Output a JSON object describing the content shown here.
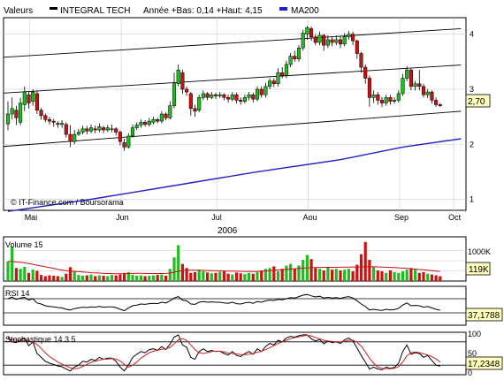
{
  "header": {
    "valeurs_label": "Valeurs",
    "stock_name": "INTEGRAL TECH",
    "stats_text": "Année +Bas: 0,14 +Haut: 4,15",
    "ma_label": "MA200",
    "colors": {
      "stock": "#000000",
      "ma": "#2222cc"
    }
  },
  "footer": {
    "credit": "© IT-Finance.com / Boursorama",
    "year": "2006"
  },
  "colors": {
    "up": "#22bb22",
    "down": "#cc1111",
    "ma": "#2222cc",
    "badge": "#ffffc0",
    "stoch_signal": "#cc2222"
  },
  "chart_data": [
    {
      "type": "candlestick",
      "name": "price",
      "ylim": [
        0.8,
        4.3
      ],
      "y_ticks": [
        "1",
        "2",
        "3",
        "4"
      ],
      "x_ticks": [
        "Mai",
        "Jun",
        "Jul",
        "Aou",
        "Sep",
        "Oct"
      ],
      "x_tick_positions": [
        1,
        23,
        46,
        68,
        90,
        103
      ],
      "last_value_badge": "2,70",
      "last_value": 2.7,
      "candles": [
        [
          2.37,
          2.55,
          2.78,
          2.25
        ],
        [
          2.55,
          2.65,
          2.85,
          2.45
        ],
        [
          2.62,
          2.48,
          2.7,
          2.35
        ],
        [
          2.4,
          2.75,
          2.85,
          2.35
        ],
        [
          2.72,
          2.95,
          3.05,
          2.6
        ],
        [
          2.9,
          2.75,
          2.95,
          2.65
        ],
        [
          2.78,
          2.95,
          3.0,
          2.7
        ],
        [
          2.92,
          2.62,
          2.97,
          2.55
        ],
        [
          2.62,
          2.52,
          2.66,
          2.45
        ],
        [
          2.52,
          2.45,
          2.56,
          2.4
        ],
        [
          2.45,
          2.42,
          2.5,
          2.36
        ],
        [
          2.42,
          2.4,
          2.46,
          2.32
        ],
        [
          2.38,
          2.36,
          2.42,
          2.3
        ],
        [
          2.36,
          2.38,
          2.44,
          2.3
        ],
        [
          2.36,
          2.18,
          2.4,
          2.12
        ],
        [
          2.18,
          2.05,
          2.35,
          1.95
        ],
        [
          2.05,
          2.18,
          2.26,
          2.0
        ],
        [
          2.18,
          2.22,
          2.28,
          2.15
        ],
        [
          2.22,
          2.28,
          2.34,
          2.18
        ],
        [
          2.28,
          2.24,
          2.33,
          2.18
        ],
        [
          2.24,
          2.3,
          2.36,
          2.2
        ],
        [
          2.28,
          2.26,
          2.34,
          2.2
        ],
        [
          2.26,
          2.32,
          2.38,
          2.22
        ],
        [
          2.3,
          2.26,
          2.34,
          2.2
        ],
        [
          2.26,
          2.3,
          2.35,
          2.22
        ],
        [
          2.28,
          2.28,
          2.36,
          2.22
        ],
        [
          2.28,
          2.22,
          2.31,
          2.16
        ],
        [
          2.22,
          2.05,
          2.25,
          1.98
        ],
        [
          2.03,
          1.95,
          2.1,
          1.88
        ],
        [
          1.95,
          2.15,
          2.2,
          1.92
        ],
        [
          2.15,
          2.3,
          2.36,
          2.12
        ],
        [
          2.3,
          2.35,
          2.4,
          2.26
        ],
        [
          2.35,
          2.4,
          2.45,
          2.3
        ],
        [
          2.4,
          2.36,
          2.44,
          2.32
        ],
        [
          2.36,
          2.42,
          2.48,
          2.32
        ],
        [
          2.4,
          2.45,
          2.5,
          2.36
        ],
        [
          2.45,
          2.42,
          2.48,
          2.38
        ],
        [
          2.42,
          2.55,
          2.6,
          2.38
        ],
        [
          2.55,
          2.48,
          2.58,
          2.44
        ],
        [
          2.48,
          2.7,
          2.78,
          2.45
        ],
        [
          2.7,
          3.1,
          3.3,
          2.65
        ],
        [
          3.1,
          3.35,
          3.45,
          3.05
        ],
        [
          3.3,
          3.0,
          3.35,
          2.92
        ],
        [
          3.0,
          2.95,
          3.05,
          2.88
        ],
        [
          2.92,
          2.65,
          2.95,
          2.52
        ],
        [
          2.65,
          2.6,
          2.72,
          2.5
        ],
        [
          2.62,
          2.85,
          2.9,
          2.58
        ],
        [
          2.85,
          2.92,
          2.98,
          2.8
        ],
        [
          2.92,
          2.85,
          2.95,
          2.8
        ],
        [
          2.85,
          2.9,
          2.95,
          2.82
        ],
        [
          2.9,
          2.88,
          2.94,
          2.82
        ],
        [
          2.88,
          2.9,
          2.95,
          2.84
        ],
        [
          2.9,
          2.85,
          2.93,
          2.8
        ],
        [
          2.85,
          2.82,
          2.9,
          2.76
        ],
        [
          2.82,
          2.9,
          2.95,
          2.78
        ],
        [
          2.9,
          2.8,
          2.94,
          2.74
        ],
        [
          2.8,
          2.78,
          2.85,
          2.72
        ],
        [
          2.78,
          2.85,
          2.9,
          2.74
        ],
        [
          2.85,
          2.9,
          2.95,
          2.8
        ],
        [
          2.9,
          2.82,
          2.94,
          2.76
        ],
        [
          2.82,
          3.0,
          3.05,
          2.78
        ],
        [
          3.0,
          2.9,
          3.05,
          2.85
        ],
        [
          2.9,
          3.05,
          3.12,
          2.85
        ],
        [
          3.05,
          3.15,
          3.2,
          3.0
        ],
        [
          3.15,
          3.1,
          3.2,
          3.04
        ],
        [
          3.1,
          3.3,
          3.38,
          3.05
        ],
        [
          3.3,
          3.25,
          3.4,
          3.2
        ],
        [
          3.25,
          3.45,
          3.52,
          3.2
        ],
        [
          3.45,
          3.6,
          3.66,
          3.4
        ],
        [
          3.6,
          3.55,
          3.7,
          3.5
        ],
        [
          3.55,
          3.75,
          3.8,
          3.5
        ],
        [
          3.75,
          4.02,
          4.08,
          3.7
        ],
        [
          4.0,
          4.12,
          4.15,
          3.9
        ],
        [
          4.1,
          3.95,
          4.14,
          3.88
        ],
        [
          3.95,
          3.85,
          4.0,
          3.8
        ],
        [
          3.85,
          3.98,
          4.05,
          3.8
        ],
        [
          3.98,
          3.8,
          4.0,
          3.7
        ],
        [
          3.8,
          3.9,
          3.98,
          3.75
        ],
        [
          3.9,
          3.85,
          3.95,
          3.78
        ],
        [
          3.85,
          3.9,
          3.98,
          3.8
        ],
        [
          3.9,
          3.82,
          3.96,
          3.75
        ],
        [
          3.82,
          3.95,
          4.02,
          3.78
        ],
        [
          3.95,
          4.0,
          4.06,
          3.9
        ],
        [
          4.0,
          3.88,
          4.05,
          3.8
        ],
        [
          3.88,
          3.65,
          3.9,
          3.55
        ],
        [
          3.65,
          3.4,
          3.68,
          3.3
        ],
        [
          3.4,
          3.2,
          3.45,
          3.1
        ],
        [
          3.2,
          2.85,
          3.25,
          2.68
        ],
        [
          2.85,
          2.9,
          2.98,
          2.75
        ],
        [
          2.9,
          2.8,
          2.95,
          2.72
        ],
        [
          2.8,
          2.75,
          2.86,
          2.68
        ],
        [
          2.75,
          2.85,
          2.9,
          2.7
        ],
        [
          2.85,
          2.78,
          2.9,
          2.72
        ],
        [
          2.78,
          2.8,
          2.85,
          2.74
        ],
        [
          2.8,
          2.92,
          2.98,
          2.76
        ],
        [
          2.92,
          3.2,
          3.28,
          2.88
        ],
        [
          3.2,
          3.35,
          3.42,
          3.15
        ],
        [
          3.35,
          3.05,
          3.38,
          2.98
        ],
        [
          3.05,
          3.1,
          3.15,
          2.98
        ],
        [
          3.1,
          3.05,
          3.35,
          2.98
        ],
        [
          3.05,
          2.9,
          3.1,
          2.85
        ],
        [
          2.9,
          2.95,
          3.0,
          2.84
        ],
        [
          2.95,
          2.8,
          2.98,
          2.74
        ],
        [
          2.8,
          2.72,
          2.85,
          2.68
        ],
        [
          2.72,
          2.7,
          2.75,
          2.68
        ]
      ],
      "ma200": [
        [
          0,
          0.78
        ],
        [
          20,
          1.0
        ],
        [
          40,
          1.25
        ],
        [
          60,
          1.5
        ],
        [
          80,
          1.72
        ],
        [
          95,
          1.95
        ],
        [
          109,
          2.1
        ]
      ],
      "channel_lines": [
        [
          [
            0,
            3.58
          ],
          [
            109,
            4.1
          ]
        ],
        [
          [
            0,
            2.93
          ],
          [
            109,
            3.44
          ]
        ],
        [
          [
            0,
            1.96
          ],
          [
            109,
            2.6
          ]
        ]
      ]
    },
    {
      "type": "bar",
      "name": "Volume 15",
      "title": "Volume 15",
      "scale_label": "1000K",
      "value_badge": "119K",
      "ylim": [
        0,
        1000
      ],
      "values": [
        480,
        850,
        320,
        300,
        350,
        200,
        280,
        250,
        150,
        120,
        140,
        130,
        120,
        100,
        180,
        340,
        250,
        150,
        130,
        140,
        160,
        120,
        140,
        130,
        120,
        150,
        140,
        160,
        200,
        220,
        150,
        130,
        140,
        120,
        130,
        140,
        150,
        160,
        130,
        300,
        580,
        880,
        420,
        320,
        200,
        220,
        280,
        240,
        210,
        190,
        200,
        230,
        240,
        180,
        160,
        210,
        190,
        170,
        200,
        180,
        220,
        260,
        300,
        320,
        360,
        240,
        300,
        380,
        420,
        300,
        380,
        520,
        640,
        540,
        320,
        300,
        260,
        340,
        280,
        300,
        260,
        280,
        300,
        240,
        400,
        660,
        960,
        520,
        340,
        260,
        240,
        200,
        260,
        220,
        200,
        240,
        280,
        320,
        300,
        200,
        220,
        180,
        160,
        140,
        119
      ],
      "ma": [
        480,
        480,
        470,
        460,
        450,
        430,
        410,
        390,
        370,
        350,
        330,
        310,
        290,
        270,
        255,
        245,
        240,
        230,
        222,
        215,
        205,
        200,
        195,
        190,
        185,
        182,
        180,
        178,
        180,
        185,
        188,
        190,
        190,
        188,
        186,
        185,
        184,
        185,
        187,
        195,
        215,
        240,
        255,
        262,
        265,
        265,
        265,
        262,
        258,
        255,
        252,
        250,
        248,
        245,
        243,
        242,
        240,
        238,
        236,
        235,
        238,
        242,
        248,
        255,
        265,
        272,
        280,
        288,
        295,
        302,
        310,
        318,
        325,
        330,
        333,
        335,
        336,
        337,
        337,
        338,
        340,
        342,
        344,
        345,
        346,
        348,
        350,
        352,
        350,
        347,
        344,
        340,
        335,
        330,
        325,
        318,
        310,
        302,
        294,
        285,
        276,
        266,
        256,
        246,
        236
      ]
    },
    {
      "type": "line",
      "name": "RSI 14",
      "title": "RSI 14",
      "value_badge": "37,1788",
      "ylim": [
        0,
        100
      ],
      "levels": [
        30,
        70
      ],
      "values": [
        70,
        75,
        68,
        72,
        74,
        66,
        70,
        58,
        55,
        50,
        48,
        47,
        45,
        44,
        40,
        38,
        42,
        44,
        46,
        45,
        47,
        46,
        48,
        46,
        47,
        47,
        45,
        40,
        36,
        44,
        50,
        52,
        55,
        54,
        56,
        57,
        56,
        60,
        58,
        64,
        72,
        76,
        66,
        64,
        55,
        54,
        60,
        62,
        60,
        61,
        60,
        60,
        58,
        57,
        60,
        56,
        55,
        58,
        60,
        57,
        62,
        60,
        64,
        66,
        65,
        68,
        67,
        70,
        73,
        72,
        76,
        80,
        82,
        78,
        75,
        77,
        72,
        74,
        72,
        73,
        71,
        74,
        76,
        72,
        64,
        55,
        48,
        38,
        40,
        38,
        37,
        40,
        38,
        39,
        43,
        52,
        58,
        50,
        51,
        50,
        46,
        48,
        44,
        40,
        37.18
      ]
    },
    {
      "type": "line",
      "name": "Stochastique 14 3 5",
      "title": "Stochastique 14 3 5",
      "value_badge": "17,2348",
      "ylim": [
        0,
        100
      ],
      "y_ticks": [
        "100",
        "50",
        "0"
      ],
      "levels": [
        20,
        80
      ],
      "values": [
        92,
        80,
        78,
        85,
        90,
        70,
        80,
        50,
        40,
        30,
        25,
        22,
        18,
        16,
        10,
        5,
        15,
        20,
        30,
        28,
        35,
        32,
        40,
        35,
        38,
        38,
        30,
        15,
        5,
        20,
        40,
        48,
        55,
        52,
        60,
        62,
        58,
        68,
        60,
        74,
        92,
        98,
        72,
        66,
        40,
        35,
        55,
        62,
        55,
        58,
        55,
        56,
        50,
        46,
        55,
        45,
        42,
        50,
        55,
        48,
        62,
        55,
        68,
        76,
        72,
        84,
        80,
        90,
        94,
        92,
        96,
        98,
        98,
        88,
        82,
        86,
        75,
        82,
        78,
        80,
        76,
        85,
        90,
        82,
        64,
        45,
        28,
        10,
        15,
        10,
        8,
        15,
        12,
        14,
        25,
        55,
        72,
        48,
        52,
        50,
        40,
        45,
        32,
        20,
        17.23
      ],
      "signal": [
        88,
        86,
        84,
        83,
        84,
        82,
        80,
        73,
        63,
        52,
        42,
        35,
        28,
        23,
        18,
        13,
        11,
        12,
        17,
        22,
        27,
        30,
        33,
        35,
        36,
        37,
        36,
        31,
        22,
        15,
        20,
        28,
        38,
        45,
        52,
        56,
        58,
        61,
        62,
        66,
        75,
        85,
        88,
        84,
        72,
        60,
        52,
        50,
        52,
        55,
        56,
        56,
        54,
        51,
        50,
        49,
        47,
        47,
        48,
        49,
        53,
        56,
        60,
        65,
        70,
        76,
        80,
        84,
        88,
        91,
        93,
        95,
        97,
        95,
        91,
        88,
        84,
        82,
        81,
        80,
        80,
        81,
        84,
        84,
        79,
        69,
        54,
        38,
        25,
        15,
        12,
        11,
        11,
        12,
        16,
        28,
        44,
        52,
        54,
        52,
        49,
        46,
        42,
        36,
        28
      ]
    }
  ]
}
